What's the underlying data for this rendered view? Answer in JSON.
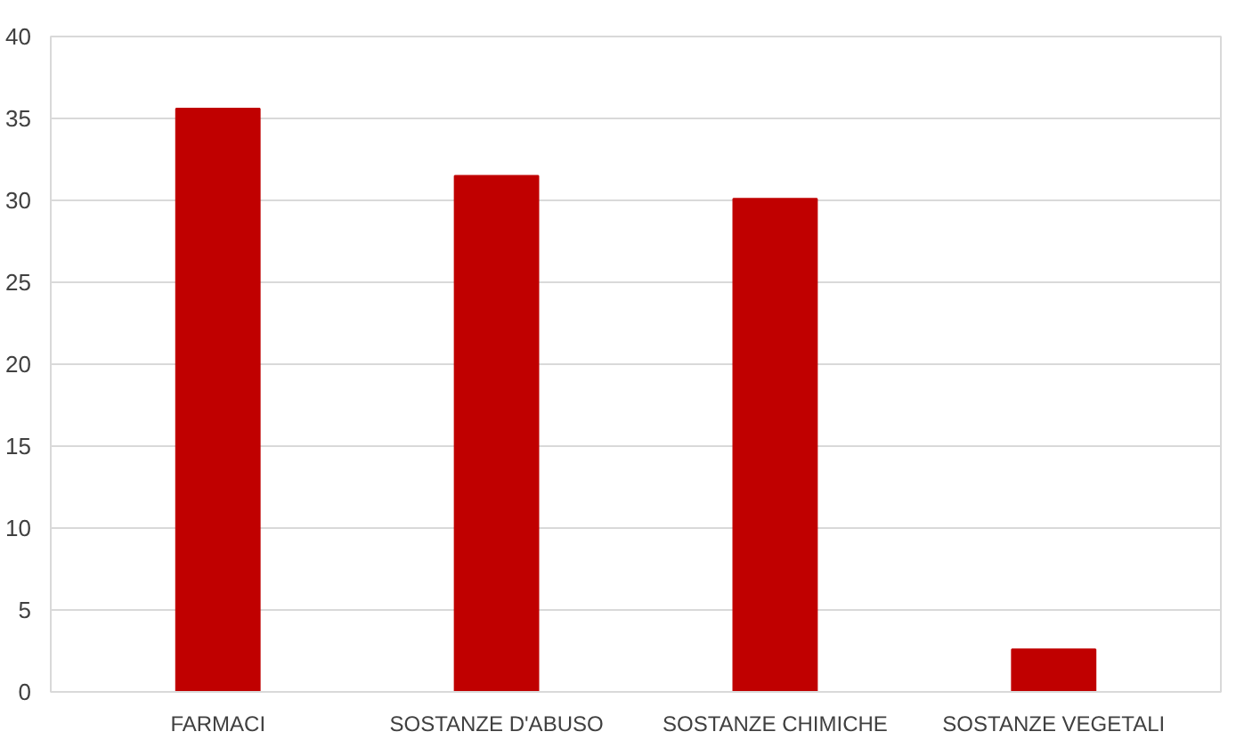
{
  "chart_data": {
    "type": "bar",
    "categories": [
      "FARMACI",
      "SOSTANZE D'ABUSO",
      "SOSTANZE CHIMICHE",
      "SOSTANZE VEGETALI"
    ],
    "values": [
      35.6,
      31.5,
      30.1,
      2.6
    ],
    "color": "#c00000",
    "ylim": [
      0,
      40
    ],
    "yticks": [
      0,
      5,
      10,
      15,
      20,
      25,
      30,
      35,
      40
    ],
    "grid": "y"
  }
}
